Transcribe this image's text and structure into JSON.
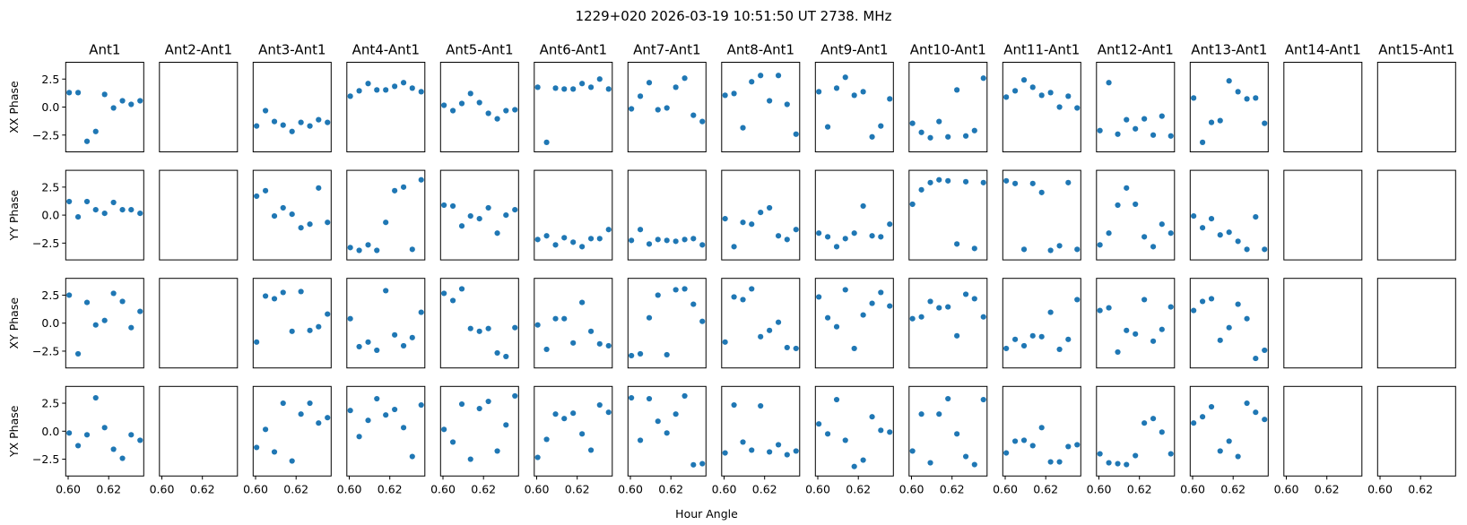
{
  "chart_data": {
    "type": "scatter",
    "title": "1229+020  2026-03-19 10:51:50 UT  2738. MHz",
    "xlabel": "Hour Angle",
    "xlim": [
      0.5988,
      0.6373
    ],
    "ylim": [
      -4.0,
      4.0
    ],
    "xticks": [
      0.6,
      0.62
    ],
    "xtick_labels": [
      "0.60",
      "0.62"
    ],
    "yticks": [
      2.5,
      0.0,
      -2.5
    ],
    "ytick_labels": [
      "2.5",
      "0.0",
      "−2.5"
    ],
    "grid": false,
    "marker_color": "#1f77b4",
    "columns": [
      "Ant1",
      "Ant2-Ant1",
      "Ant3-Ant1",
      "Ant4-Ant1",
      "Ant5-Ant1",
      "Ant6-Ant1",
      "Ant7-Ant1",
      "Ant8-Ant1",
      "Ant9-Ant1",
      "Ant10-Ant1",
      "Ant11-Ant1",
      "Ant12-Ant1",
      "Ant13-Ant1",
      "Ant14-Ant1",
      "Ant15-Ant1"
    ],
    "rows": [
      "XX Phase",
      "YY Phase",
      "XY Phase",
      "YX Phase"
    ],
    "x": [
      0.6005,
      0.6049,
      0.6093,
      0.6136,
      0.618,
      0.6224,
      0.6268,
      0.6311,
      0.6355
    ],
    "y": [
      [
        [
          1.29,
          1.29,
          -3.06,
          -2.18,
          1.13,
          -0.08,
          0.56,
          0.24,
          0.56
        ],
        null,
        [
          -1.69,
          -0.32,
          -1.29,
          -1.61,
          -2.18,
          -1.37,
          -1.69,
          -1.13,
          -1.37
        ],
        [
          0.97,
          1.45,
          2.1,
          1.53,
          1.53,
          1.85,
          2.18,
          1.69,
          1.37
        ],
        [
          0.16,
          -0.32,
          0.32,
          1.21,
          0.4,
          -0.56,
          -1.05,
          -0.32,
          -0.24
        ],
        [
          1.77,
          -3.15,
          1.69,
          1.61,
          1.61,
          2.1,
          1.77,
          2.5,
          1.61
        ],
        [
          -0.16,
          0.97,
          2.18,
          -0.24,
          -0.08,
          1.77,
          2.58,
          -0.73,
          -1.29
        ],
        [
          1.05,
          1.21,
          -1.85,
          2.26,
          2.82,
          0.56,
          2.82,
          0.24,
          -2.42
        ],
        [
          1.37,
          -1.77,
          1.69,
          2.66,
          1.05,
          1.37,
          -2.66,
          -1.69,
          0.73
        ],
        [
          -1.45,
          -2.26,
          -2.74,
          -1.29,
          -2.66,
          1.53,
          -2.58,
          -2.1,
          2.58
        ],
        [
          0.89,
          1.45,
          2.42,
          1.77,
          1.05,
          1.29,
          0.0,
          0.97,
          -0.08
        ],
        [
          -2.1,
          2.18,
          -2.42,
          -1.13,
          -1.94,
          -1.05,
          -2.5,
          -0.81,
          -2.58
        ],
        [
          0.81,
          -3.15,
          -1.37,
          -1.21,
          2.34,
          1.37,
          0.73,
          0.81,
          -1.45
        ],
        null,
        null
      ],
      [
        [
          1.21,
          -0.16,
          1.21,
          0.48,
          0.16,
          1.13,
          0.48,
          0.48,
          0.16
        ],
        null,
        [
          1.69,
          2.18,
          -0.08,
          0.65,
          0.08,
          -1.13,
          -0.81,
          2.42,
          -0.65
        ],
        [
          -2.9,
          -3.15,
          -2.66,
          -3.15,
          -0.65,
          2.18,
          2.5,
          -3.06,
          3.15
        ],
        [
          0.89,
          0.81,
          -0.97,
          -0.08,
          -0.32,
          0.65,
          -1.61,
          0.0,
          0.48
        ],
        [
          -2.18,
          -1.85,
          -2.66,
          -2.02,
          -2.42,
          -2.82,
          -2.1,
          -2.1,
          -1.29
        ],
        [
          -2.26,
          -1.29,
          -2.58,
          -2.18,
          -2.26,
          -2.34,
          -2.18,
          -2.1,
          -2.66
        ],
        [
          -0.32,
          -2.82,
          -0.65,
          -0.81,
          0.24,
          0.65,
          -1.85,
          -2.18,
          -1.29
        ],
        [
          -1.61,
          -1.94,
          -2.82,
          -2.1,
          -1.61,
          0.81,
          -1.85,
          -1.94,
          -0.81
        ],
        [
          0.97,
          2.26,
          2.9,
          3.15,
          3.06,
          -2.58,
          2.98,
          -2.98,
          2.9
        ],
        [
          3.06,
          2.82,
          -3.06,
          2.82,
          2.02,
          -3.15,
          -2.74,
          2.9,
          -3.06
        ],
        [
          -2.66,
          -1.61,
          0.89,
          2.42,
          0.97,
          -1.94,
          -2.82,
          -0.81,
          -1.61
        ],
        [
          -0.08,
          -1.13,
          -0.32,
          -1.77,
          -1.53,
          -2.34,
          -3.06,
          -0.16,
          -3.06
        ],
        null,
        null
      ],
      [
        [
          2.5,
          -2.74,
          1.85,
          -0.16,
          0.24,
          2.66,
          1.94,
          -0.4,
          1.05
        ],
        null,
        [
          -1.69,
          2.42,
          2.18,
          2.74,
          -0.73,
          2.82,
          -0.65,
          -0.32,
          0.81
        ],
        [
          0.4,
          -2.1,
          -1.69,
          -2.42,
          2.9,
          -1.05,
          -2.02,
          -1.29,
          0.97
        ],
        [
          2.66,
          2.02,
          3.06,
          -0.48,
          -0.73,
          -0.48,
          -2.66,
          -2.98,
          -0.4
        ],
        [
          -0.16,
          -2.34,
          0.4,
          0.4,
          -1.77,
          1.85,
          -0.73,
          -1.85,
          -2.02
        ],
        [
          -2.9,
          -2.74,
          0.48,
          2.5,
          -2.82,
          2.98,
          3.06,
          1.69,
          0.16
        ],
        [
          -1.69,
          2.34,
          2.1,
          3.06,
          -1.21,
          -0.65,
          0.08,
          -2.18,
          -2.26
        ],
        [
          2.34,
          0.48,
          -0.32,
          2.98,
          -2.26,
          0.73,
          1.77,
          2.74,
          1.53
        ],
        [
          0.4,
          0.56,
          1.94,
          1.37,
          1.45,
          -1.13,
          2.58,
          2.18,
          0.56
        ],
        [
          -2.26,
          -1.45,
          -2.02,
          -1.13,
          -1.21,
          0.97,
          -2.34,
          -1.45,
          2.1
        ],
        [
          1.13,
          1.37,
          -2.58,
          -0.65,
          -0.97,
          2.1,
          -1.61,
          -0.56,
          1.45
        ],
        [
          1.13,
          1.94,
          2.18,
          -1.53,
          -0.4,
          1.69,
          0.4,
          -3.15,
          -2.42
        ],
        null,
        null
      ],
      [
        [
          -0.16,
          -1.29,
          -0.32,
          2.98,
          0.32,
          -1.61,
          -2.42,
          -0.32,
          -0.81
        ],
        null,
        [
          -1.45,
          0.16,
          -1.85,
          2.5,
          -2.66,
          1.53,
          2.5,
          0.73,
          1.21
        ],
        [
          1.85,
          -0.48,
          0.97,
          2.9,
          1.45,
          1.94,
          0.32,
          -2.26,
          2.34
        ],
        [
          0.16,
          -0.97,
          2.42,
          -2.5,
          2.02,
          2.66,
          -1.77,
          0.56,
          3.15
        ],
        [
          -2.34,
          -0.73,
          1.53,
          1.13,
          1.61,
          -0.24,
          -1.69,
          2.34,
          1.69
        ],
        [
          2.98,
          -0.81,
          2.9,
          0.89,
          -0.16,
          1.53,
          3.15,
          -3.0,
          -2.9
        ],
        [
          -1.94,
          2.34,
          -0.97,
          -1.69,
          2.26,
          -1.85,
          -1.21,
          -2.1,
          -1.77
        ],
        [
          0.65,
          -0.24,
          2.82,
          -0.81,
          -3.15,
          -2.58,
          1.29,
          0.08,
          -0.08
        ],
        [
          -1.77,
          1.53,
          -2.82,
          1.53,
          2.9,
          -0.24,
          -2.26,
          -2.98,
          2.82
        ],
        [
          -1.94,
          -0.89,
          -0.81,
          -1.29,
          0.32,
          -2.74,
          -2.74,
          -1.37,
          -1.21
        ],
        [
          -2.02,
          -2.82,
          -2.9,
          -2.98,
          -2.18,
          0.73,
          1.13,
          -0.08,
          -2.02
        ],
        [
          0.73,
          1.29,
          2.18,
          -1.77,
          -0.89,
          -2.26,
          2.5,
          1.69,
          1.05
        ],
        null,
        null
      ]
    ]
  }
}
